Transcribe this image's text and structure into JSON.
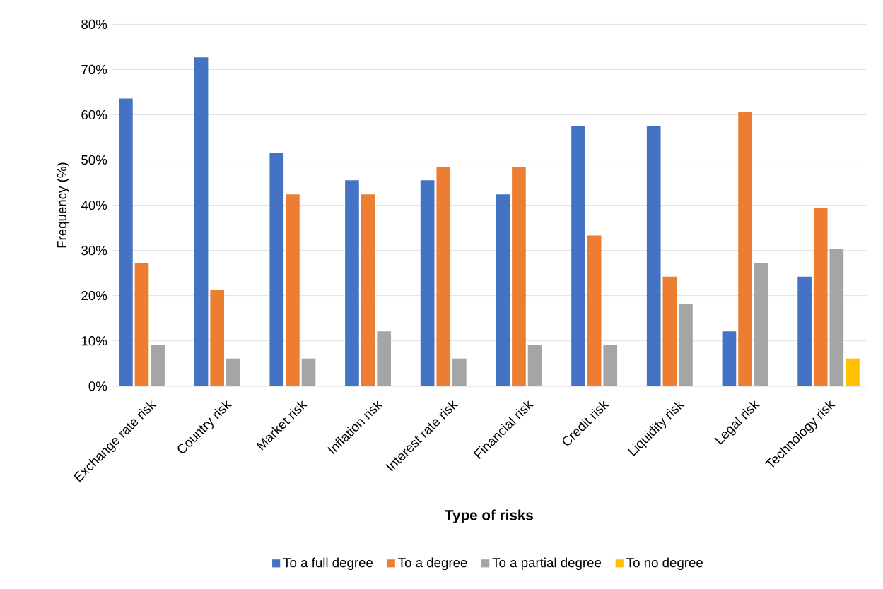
{
  "chart_data": {
    "type": "bar",
    "xlabel": "Type of risks",
    "ylabel": "Frequency (%)",
    "categories": [
      "Exchange rate risk",
      "Country risk",
      "Market risk",
      "Inflation risk",
      "Interest rate risk",
      "Financial risk",
      "Credit risk",
      "Liquidity risk",
      "Legal risk",
      "Technology risk"
    ],
    "series": [
      {
        "name": "To a full degree",
        "color": "#4472c4",
        "values": [
          63.6,
          72.7,
          51.5,
          45.5,
          45.5,
          42.4,
          57.6,
          57.6,
          12.1,
          24.2
        ]
      },
      {
        "name": "To a degree",
        "color": "#ed7d31",
        "values": [
          27.3,
          21.2,
          42.4,
          42.4,
          48.5,
          48.5,
          33.3,
          24.2,
          60.6,
          39.4
        ]
      },
      {
        "name": "To a partial degree",
        "color": "#a5a5a5",
        "values": [
          9.1,
          6.1,
          6.1,
          12.1,
          6.1,
          9.1,
          9.1,
          18.2,
          27.3,
          30.3
        ]
      },
      {
        "name": "To  no degree",
        "color": "#ffc000",
        "values": [
          null,
          null,
          null,
          null,
          null,
          null,
          null,
          null,
          null,
          6.1
        ]
      }
    ],
    "ylim": [
      0,
      80
    ],
    "yticks": [
      {
        "value": 0,
        "label": "0%"
      },
      {
        "value": 10,
        "label": "10%"
      },
      {
        "value": 20,
        "label": "20%"
      },
      {
        "value": 30,
        "label": "30%"
      },
      {
        "value": 40,
        "label": "40%"
      },
      {
        "value": 50,
        "label": "50%"
      },
      {
        "value": 60,
        "label": "60%"
      },
      {
        "value": 70,
        "label": "70%"
      },
      {
        "value": 80,
        "label": "80%"
      }
    ],
    "grid": "y",
    "legend": "bottom"
  }
}
